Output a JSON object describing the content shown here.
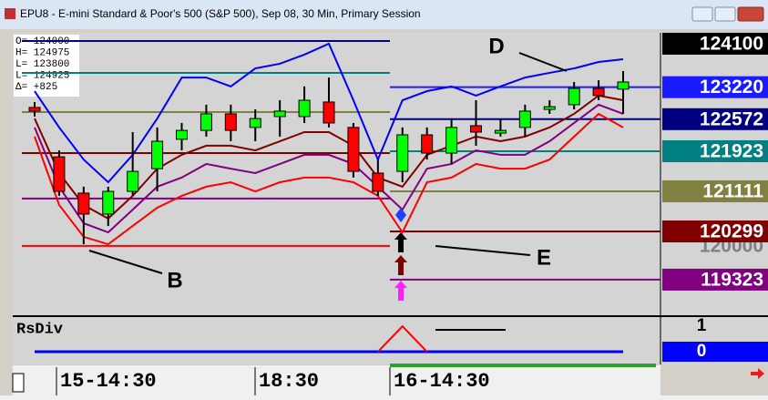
{
  "window": {
    "title": "EPU8 - E-mini Standard & Poor's 500 (S&P 500), Sep 08, 30 Min, Primary Session"
  },
  "info": [
    "O= 124000",
    "H= 124975",
    "L= 123800",
    "L= 124925",
    "Δ=      +825"
  ],
  "chart_data": {
    "type": "candlestick",
    "ylim": [
      118620,
      124284
    ],
    "up_color": "#00ff00",
    "down_color": "#ff0000",
    "ohlc": [
      [
        122810,
        122920,
        122625,
        122735
      ],
      [
        121810,
        121940,
        121020,
        121110
      ],
      [
        121075,
        121205,
        120040,
        120650
      ],
      [
        120650,
        121205,
        120410,
        121110
      ],
      [
        121110,
        122310,
        121020,
        121515
      ],
      [
        121570,
        122405,
        121110,
        122125
      ],
      [
        122165,
        122495,
        121940,
        122345
      ],
      [
        122345,
        122865,
        122220,
        122680
      ],
      [
        122680,
        122865,
        122125,
        122345
      ],
      [
        122405,
        122770,
        122125,
        122585
      ],
      [
        122625,
        122955,
        122220,
        122735
      ],
      [
        122625,
        123235,
        122495,
        122955
      ],
      [
        122920,
        123415,
        122405,
        122495
      ],
      [
        122405,
        122495,
        121390,
        121515
      ],
      [
        121480,
        121755,
        121020,
        121110
      ],
      [
        121515,
        122405,
        121295,
        122255
      ],
      [
        122255,
        122405,
        121755,
        121885
      ],
      [
        121885,
        122585,
        121665,
        122405
      ],
      [
        122440,
        122955,
        122035,
        122310
      ],
      [
        122290,
        122585,
        122220,
        122345
      ],
      [
        122405,
        122865,
        122220,
        122735
      ],
      [
        122770,
        122955,
        122680,
        122825
      ],
      [
        122865,
        123325,
        122770,
        123195
      ],
      [
        123195,
        123360,
        122955,
        123050
      ],
      [
        123180,
        123545,
        122680,
        123325
      ]
    ],
    "series": [
      {
        "color": "#0000ff",
        "values": [
          123140,
          122405,
          121755,
          121295,
          121850,
          122585,
          123415,
          123415,
          123235,
          123600,
          123695,
          123880,
          124100,
          122955,
          121755,
          122955,
          123140,
          123235,
          123050,
          123235,
          123415,
          123510,
          123600,
          123730,
          123785
        ]
      },
      {
        "color": "#800000",
        "values": [
          122585,
          121480,
          120835,
          120560,
          121020,
          121570,
          121850,
          122035,
          122035,
          121940,
          122125,
          122310,
          122310,
          122035,
          121390,
          121205,
          121850,
          122035,
          122220,
          122125,
          122220,
          122405,
          122680,
          123050,
          122955
        ]
      },
      {
        "color": "#800080",
        "values": [
          122405,
          121205,
          120465,
          120280,
          120740,
          121205,
          121390,
          121665,
          121570,
          121480,
          121665,
          121850,
          121850,
          121665,
          121205,
          120740,
          121570,
          121665,
          121940,
          121850,
          121850,
          122125,
          122495,
          122865,
          122680
        ]
      },
      {
        "color": "#ff0000",
        "values": [
          122220,
          120835,
          120190,
          120040,
          120410,
          120780,
          121020,
          121205,
          121295,
          121110,
          121295,
          121390,
          121390,
          121295,
          121020,
          120280,
          121295,
          121390,
          121665,
          121570,
          121570,
          121755,
          122220,
          122680,
          122405
        ]
      }
    ],
    "prev_levels": [
      {
        "value": 124155,
        "color": "#000080"
      },
      {
        "value": 123510,
        "color": "#008080"
      },
      {
        "value": 122715,
        "color": "#808040"
      },
      {
        "value": 121885,
        "color": "#800000"
      },
      {
        "value": 120965,
        "color": "#800080"
      },
      {
        "value": 120005,
        "color": "#ff0000"
      }
    ],
    "price_labels": [
      {
        "value": 124100,
        "color": "#000000",
        "text_color": "#ffffff"
      },
      {
        "value": 120000,
        "color": "#d4d4d4",
        "text_color": "#808080"
      },
      {
        "value": 123220,
        "color": "#1a1aff",
        "text_color": "#ffffff",
        "line_color": "#1a1aff"
      },
      {
        "value": 122572,
        "color": "#000080",
        "text_color": "#ffffff",
        "line_color": "#000080"
      },
      {
        "value": 121923,
        "color": "#008080",
        "text_color": "#ffffff",
        "line_color": "#008080"
      },
      {
        "value": 121111,
        "color": "#808040",
        "text_color": "#ffffff",
        "line_color": "#808040"
      },
      {
        "value": 120299,
        "color": "#800000",
        "text_color": "#ffffff",
        "line_color": "#800000"
      },
      {
        "value": 119323,
        "color": "#800080",
        "text_color": "#ffffff",
        "line_color": "#800080"
      }
    ],
    "annotations": [
      "D",
      "E",
      "B"
    ],
    "x_labels": [
      "15-14:30",
      "18:30",
      "16-14:30"
    ],
    "indicator": {
      "name": "RsDiv",
      "ylim": [
        -0.5,
        1.36
      ],
      "yticks": [
        1,
        0
      ],
      "color": "#0000ff",
      "signal_color": "#ff0000",
      "values": [
        0,
        0,
        0,
        0,
        0,
        0,
        0,
        0,
        0,
        0,
        0,
        0,
        0,
        0,
        0,
        1,
        0,
        0,
        0,
        0,
        0,
        0,
        0,
        0,
        0
      ]
    }
  }
}
